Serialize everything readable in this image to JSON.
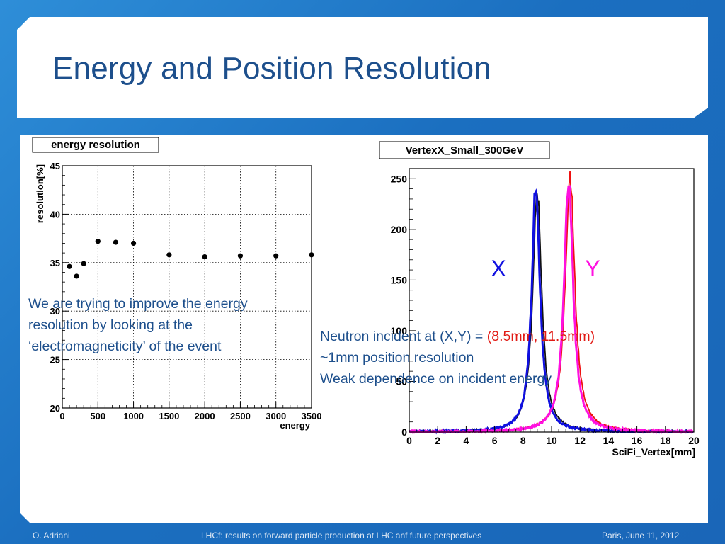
{
  "slide": {
    "title": "Energy and Position Resolution",
    "left_text": "We are trying to improve the energy resolution by looking at the ‘electromagneticity’ of the event",
    "right_text": {
      "line1_prefix": "Neutron incident at (X,Y) = ",
      "line1_highlight": "(8.5mm, 11.5mm)",
      "line2": "~1mm position resolution",
      "line3": "Weak dependence on incident energy"
    }
  },
  "footer": {
    "author": "O. Adriani",
    "talk": "LHCf: results on forward particle production at LHC anf future perspectives",
    "place_date": "Paris, June 11, 2012"
  },
  "chart_data": [
    {
      "type": "scatter",
      "title": "energy resolution",
      "xlabel": "energy",
      "ylabel": "resolution[%]",
      "xlim": [
        0,
        3500
      ],
      "ylim": [
        20,
        45
      ],
      "xticks": [
        "0",
        "500",
        "1000",
        "1500",
        "2000",
        "2500",
        "3000",
        "3500"
      ],
      "yticks": [
        "20",
        "25",
        "30",
        "35",
        "40",
        "45"
      ],
      "grid": true,
      "x": [
        100,
        200,
        300,
        500,
        750,
        1000,
        1500,
        2000,
        2500,
        3000,
        3500
      ],
      "y": [
        34.6,
        33.6,
        34.9,
        37.2,
        37.1,
        37.0,
        35.8,
        35.6,
        35.7,
        35.7,
        35.8
      ]
    },
    {
      "type": "line",
      "title": "VertexX_Small_300GeV",
      "xlabel": "SciFi_Vertex[mm]",
      "ylabel": "",
      "xlim": [
        0,
        20
      ],
      "ylim": [
        0,
        260
      ],
      "xticks": [
        "0",
        "2",
        "4",
        "6",
        "8",
        "10",
        "12",
        "14",
        "16",
        "18",
        "20"
      ],
      "yticks": [
        "0",
        "50",
        "100",
        "150",
        "200",
        "250"
      ],
      "annotations": [
        "X",
        "Y"
      ],
      "series": [
        {
          "color": "#1010e0",
          "peak_x": 8.9,
          "peak_y": 245,
          "width": 0.35,
          "label": "X"
        },
        {
          "color": "#ff10e0",
          "peak_x": 11.2,
          "peak_y": 250,
          "width": 0.38,
          "label": "Y"
        },
        {
          "color": "#111111",
          "peak_x": 9.0,
          "peak_y": 235,
          "width": 0.38
        },
        {
          "color": "#ee1111",
          "peak_x": 11.3,
          "peak_y": 256,
          "width": 0.4
        }
      ]
    }
  ]
}
